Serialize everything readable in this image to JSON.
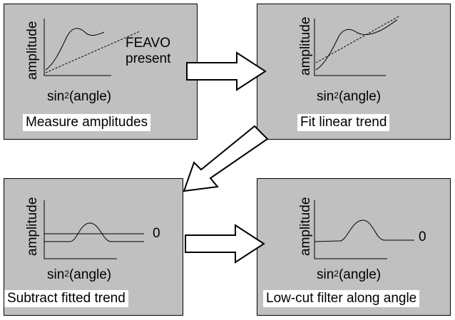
{
  "annotation": {
    "line1": "FEAVO",
    "line2": "present"
  },
  "panels": [
    {
      "ylabel": "amplitude",
      "xlabel_base": "sin",
      "xlabel_sup": "2",
      "xlabel_rest": "(angle)",
      "caption": "Measure amplitudes"
    },
    {
      "ylabel": "amplitude",
      "xlabel_base": "sin",
      "xlabel_sup": "2",
      "xlabel_rest": "(angle)",
      "caption": "Fit linear trend"
    },
    {
      "ylabel": "amplitude",
      "xlabel_base": "sin",
      "xlabel_sup": "2",
      "xlabel_rest": "(angle)",
      "caption": "Subtract fitted trend",
      "zero": "0"
    },
    {
      "ylabel": "amplitude",
      "xlabel_base": "sin",
      "xlabel_sup": "2",
      "xlabel_rest": "(angle)",
      "caption": "Low-cut filter along angle",
      "zero": "0"
    }
  ],
  "colors": {
    "panel": "#c0c0c0",
    "caption_bg": "#ffffff",
    "stroke": "#000000"
  }
}
